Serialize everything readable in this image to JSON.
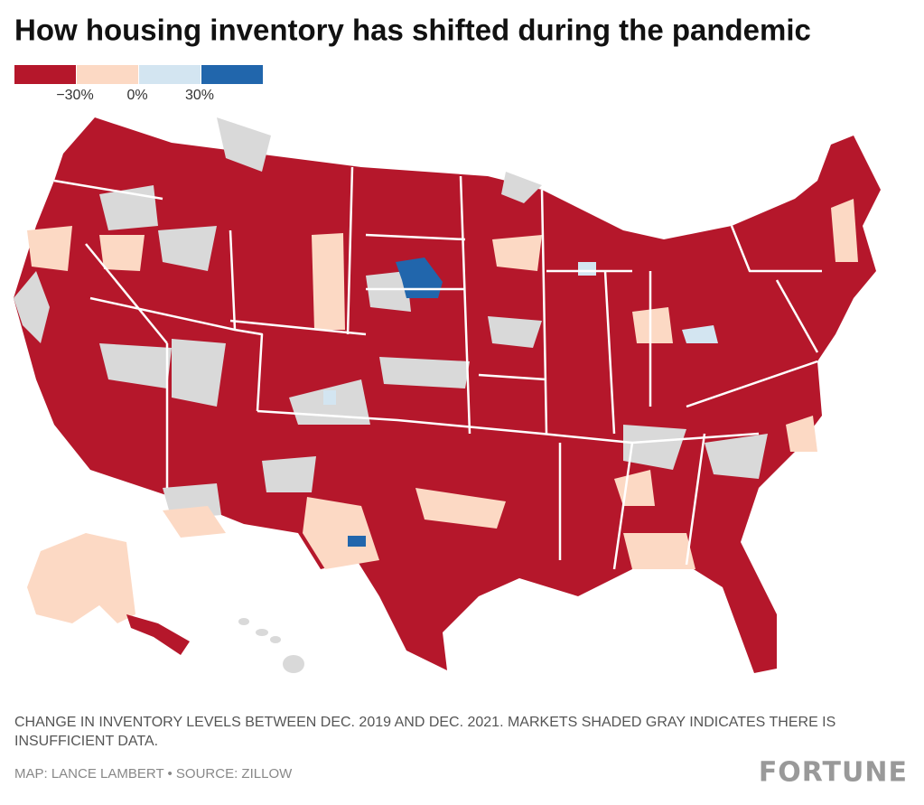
{
  "header": {
    "title": "How housing inventory has shifted during the pandemic"
  },
  "legend": {
    "colors": [
      "#b5172b",
      "#fcd9c4",
      "#d3e5f1",
      "#2166ac"
    ],
    "ticks": [
      {
        "value": -30,
        "label": "−30%"
      },
      {
        "value": 0,
        "label": "0%"
      },
      {
        "value": 30,
        "label": "30%"
      }
    ]
  },
  "footer": {
    "note_line1": "CHANGE IN INVENTORY LEVELS BETWEEN DEC. 2019 AND DEC. 2021. MARKETS SHADED GRAY INDICATES THERE IS",
    "note_line2": "INSUFFICIENT DATA.",
    "credit": "MAP: LANCE LAMBERT • SOURCE: ZILLOW",
    "brand": "FORTUNE"
  }
}
